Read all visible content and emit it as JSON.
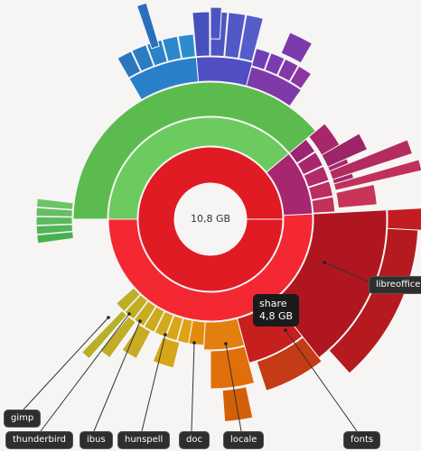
{
  "center": {
    "total_size": "10,8 GB"
  },
  "tooltip": {
    "name": "share",
    "size": "4,8 GB"
  },
  "labels": {
    "gimp": "gimp",
    "thunderbird": "thunderbird",
    "ibus": "ibus",
    "hunspell": "hunspell",
    "doc": "doc",
    "locale": "locale",
    "fonts": "fonts",
    "libreoffice": "libreoffice"
  },
  "colors": {
    "red": "#e01b24",
    "red_light": "#f42833",
    "green": "#5cbb4e",
    "green_light": "#6ccb5f",
    "blue": "#2a7fc9",
    "indigo": "#4f4fc3",
    "purple": "#7d3aa8",
    "magenta": "#a6266f",
    "orange": "#e37f0f",
    "yellow": "#d6a819"
  }
}
